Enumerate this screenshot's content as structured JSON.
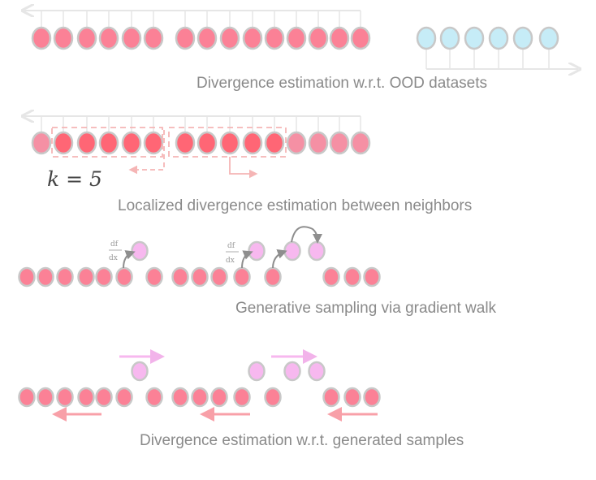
{
  "colors": {
    "in_distribution": "#fb8196",
    "in_distribution_dark": "#ff6675",
    "in_distribution_light": "#f590a4",
    "ood": "#c6ecf7",
    "generated": "#f7b8ef",
    "outline": "#c8c8c8",
    "axis": "#e6e6e6",
    "gradient_arrow": "#8e8e8e",
    "neighbor_box": "#f5b5b5"
  },
  "panels": [
    {
      "caption": "Divergence estimation w.r.t. OOD datasets"
    },
    {
      "caption": "Localized divergence estimation between neighbors",
      "k_label": "k = 5"
    },
    {
      "caption": "Generative sampling via gradient walk",
      "gradient_label_num": "df",
      "gradient_label_den": "dx"
    },
    {
      "caption": "Divergence estimation w.r.t. generated samples"
    }
  ]
}
